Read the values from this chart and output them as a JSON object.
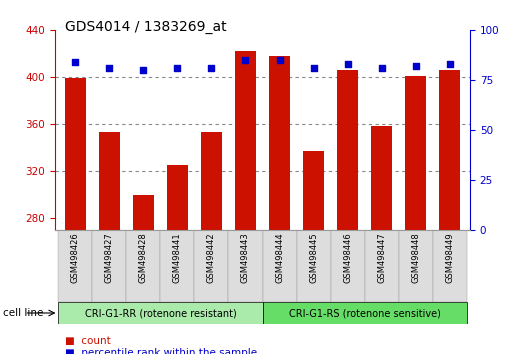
{
  "title": "GDS4014 / 1383269_at",
  "samples": [
    "GSM498426",
    "GSM498427",
    "GSM498428",
    "GSM498441",
    "GSM498442",
    "GSM498443",
    "GSM498444",
    "GSM498445",
    "GSM498446",
    "GSM498447",
    "GSM498448",
    "GSM498449"
  ],
  "counts": [
    399,
    353,
    300,
    325,
    353,
    422,
    418,
    337,
    406,
    358,
    401,
    406
  ],
  "percentiles": [
    84,
    81,
    80,
    81,
    81,
    85,
    85,
    81,
    83,
    81,
    82,
    83
  ],
  "ylim_left": [
    270,
    440
  ],
  "ylim_right": [
    0,
    100
  ],
  "yticks_left": [
    280,
    320,
    360,
    400,
    440
  ],
  "yticks_right": [
    0,
    25,
    50,
    75,
    100
  ],
  "bar_color": "#cc1100",
  "dot_color": "#0000cc",
  "grid_color": "#888888",
  "background_color": "#ffffff",
  "plot_bg": "#ffffff",
  "group1_label": "CRI-G1-RR (rotenone resistant)",
  "group2_label": "CRI-G1-RS (rotenone sensitive)",
  "group1_color": "#aaeaaa",
  "group2_color": "#66dd66",
  "group1_count": 6,
  "group2_count": 6,
  "cell_line_label": "cell line",
  "legend_count_label": "count",
  "legend_pct_label": "percentile rank within the sample",
  "xlabel_color": "#cc0000",
  "ylabel_right_color": "#0000cc",
  "title_fontsize": 10,
  "tick_fontsize": 7.5,
  "bar_width": 0.6
}
